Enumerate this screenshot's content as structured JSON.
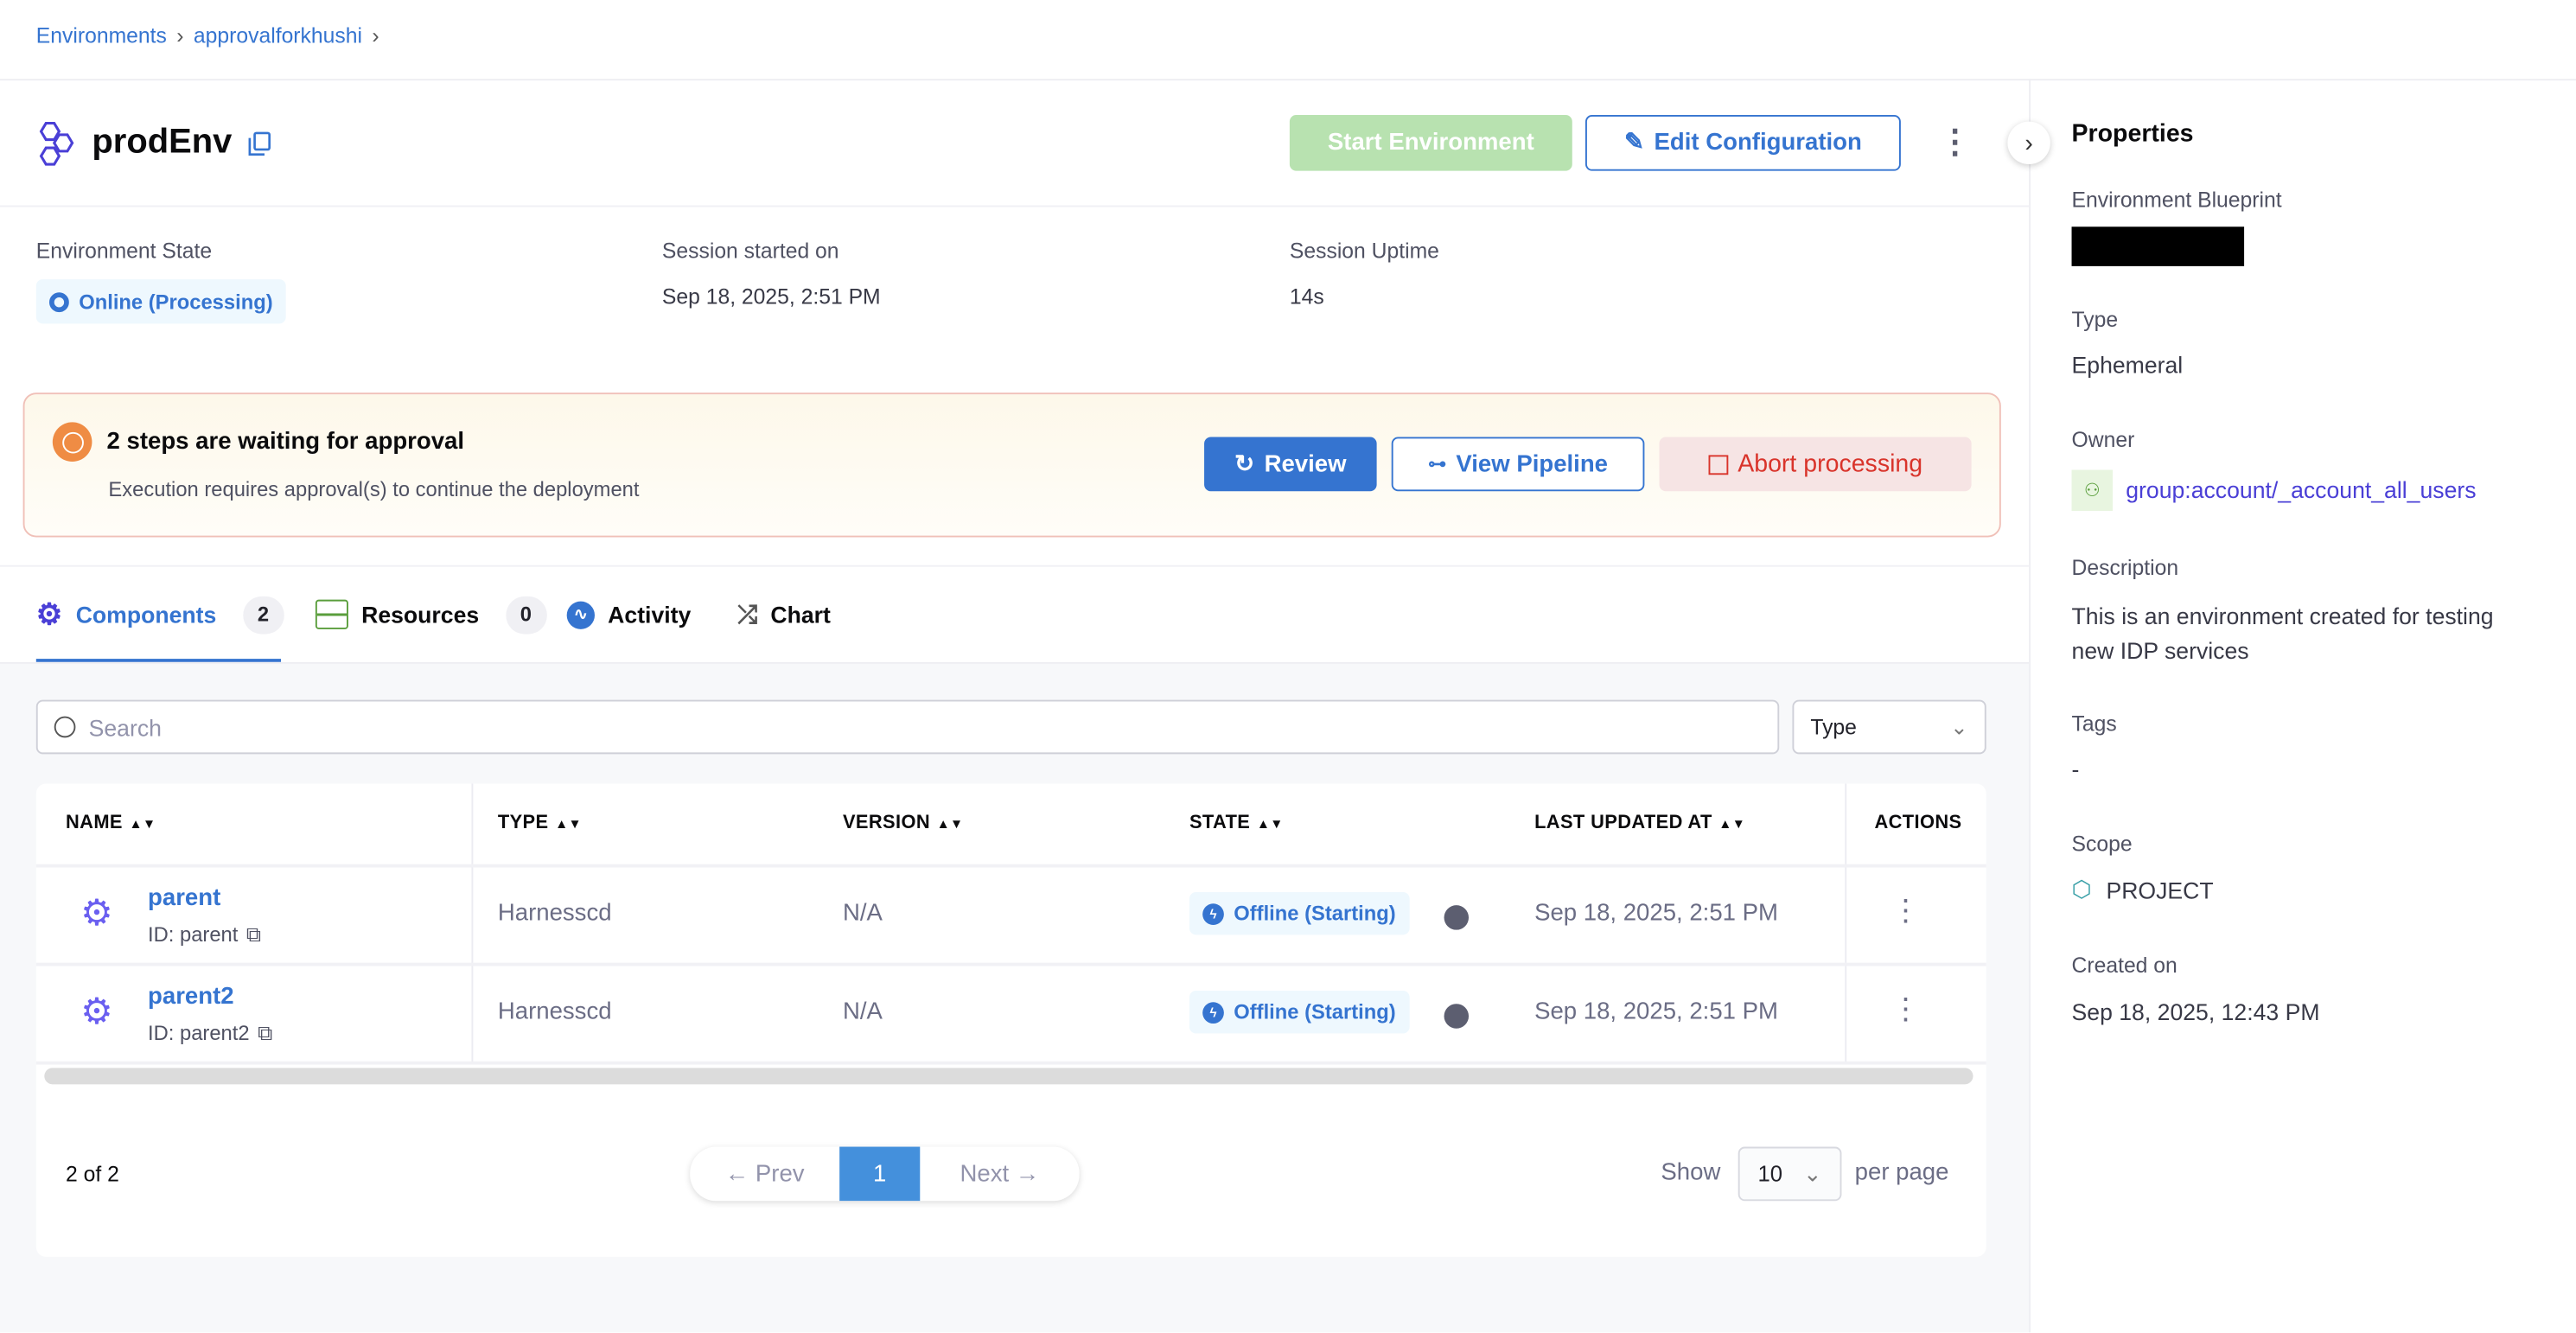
{
  "breadcrumb": {
    "items": [
      "Environments",
      "approvalforkhushi"
    ]
  },
  "header": {
    "title": "prodEnv",
    "start_label": "Start Environment",
    "edit_label": "Edit Configuration"
  },
  "info": {
    "state_label": "Environment State",
    "state_value": "Online (Processing)",
    "session_label": "Session started on",
    "session_value": "Sep 18, 2025, 2:51 PM",
    "uptime_label": "Session Uptime",
    "uptime_value": "14s"
  },
  "banner": {
    "title": "2 steps are waiting for approval",
    "subtitle": "Execution requires approval(s) to continue the deployment",
    "review": "Review",
    "view_pipeline": "View Pipeline",
    "abort": "Abort processing"
  },
  "tabs": [
    {
      "label": "Components",
      "count": "2"
    },
    {
      "label": "Resources",
      "count": "0"
    },
    {
      "label": "Activity"
    },
    {
      "label": "Chart"
    }
  ],
  "search": {
    "placeholder": "Search",
    "type_select": "Type"
  },
  "table": {
    "columns": [
      "NAME",
      "TYPE",
      "VERSION",
      "STATE",
      "LAST UPDATED AT",
      "ACTIONS"
    ],
    "rows": [
      {
        "name": "parent",
        "id": "ID: parent",
        "type": "Harnesscd",
        "version": "N/A",
        "state": "Offline (Starting)",
        "updated": "Sep 18, 2025, 2:51 PM"
      },
      {
        "name": "parent2",
        "id": "ID: parent2",
        "type": "Harnesscd",
        "version": "N/A",
        "state": "Offline (Starting)",
        "updated": "Sep 18, 2025, 2:51 PM"
      }
    ]
  },
  "footer": {
    "count": "2 of 2",
    "prev": "Prev",
    "page": "1",
    "next": "Next",
    "show": "Show",
    "per_page_value": "10",
    "per_page": "per page"
  },
  "properties": {
    "title": "Properties",
    "blueprint_label": "Environment Blueprint",
    "type_label": "Type",
    "type_value": "Ephemeral",
    "owner_label": "Owner",
    "owner_value": "group:account/_account_all_users",
    "description_label": "Description",
    "description_value": "This is an environment created for testing new IDP services",
    "tags_label": "Tags",
    "tags_value": "-",
    "scope_label": "Scope",
    "scope_value": "PROJECT",
    "created_label": "Created on",
    "created_value": "Sep 18, 2025, 12:43 PM"
  },
  "colors": {
    "primary": "#3574d0",
    "start_disabled": "#b8e2b0",
    "abort_bg": "#f6e4e4",
    "abort_text": "#d9342b",
    "banner_bg": "#fdf9ee",
    "warning": "#ef8c44"
  }
}
